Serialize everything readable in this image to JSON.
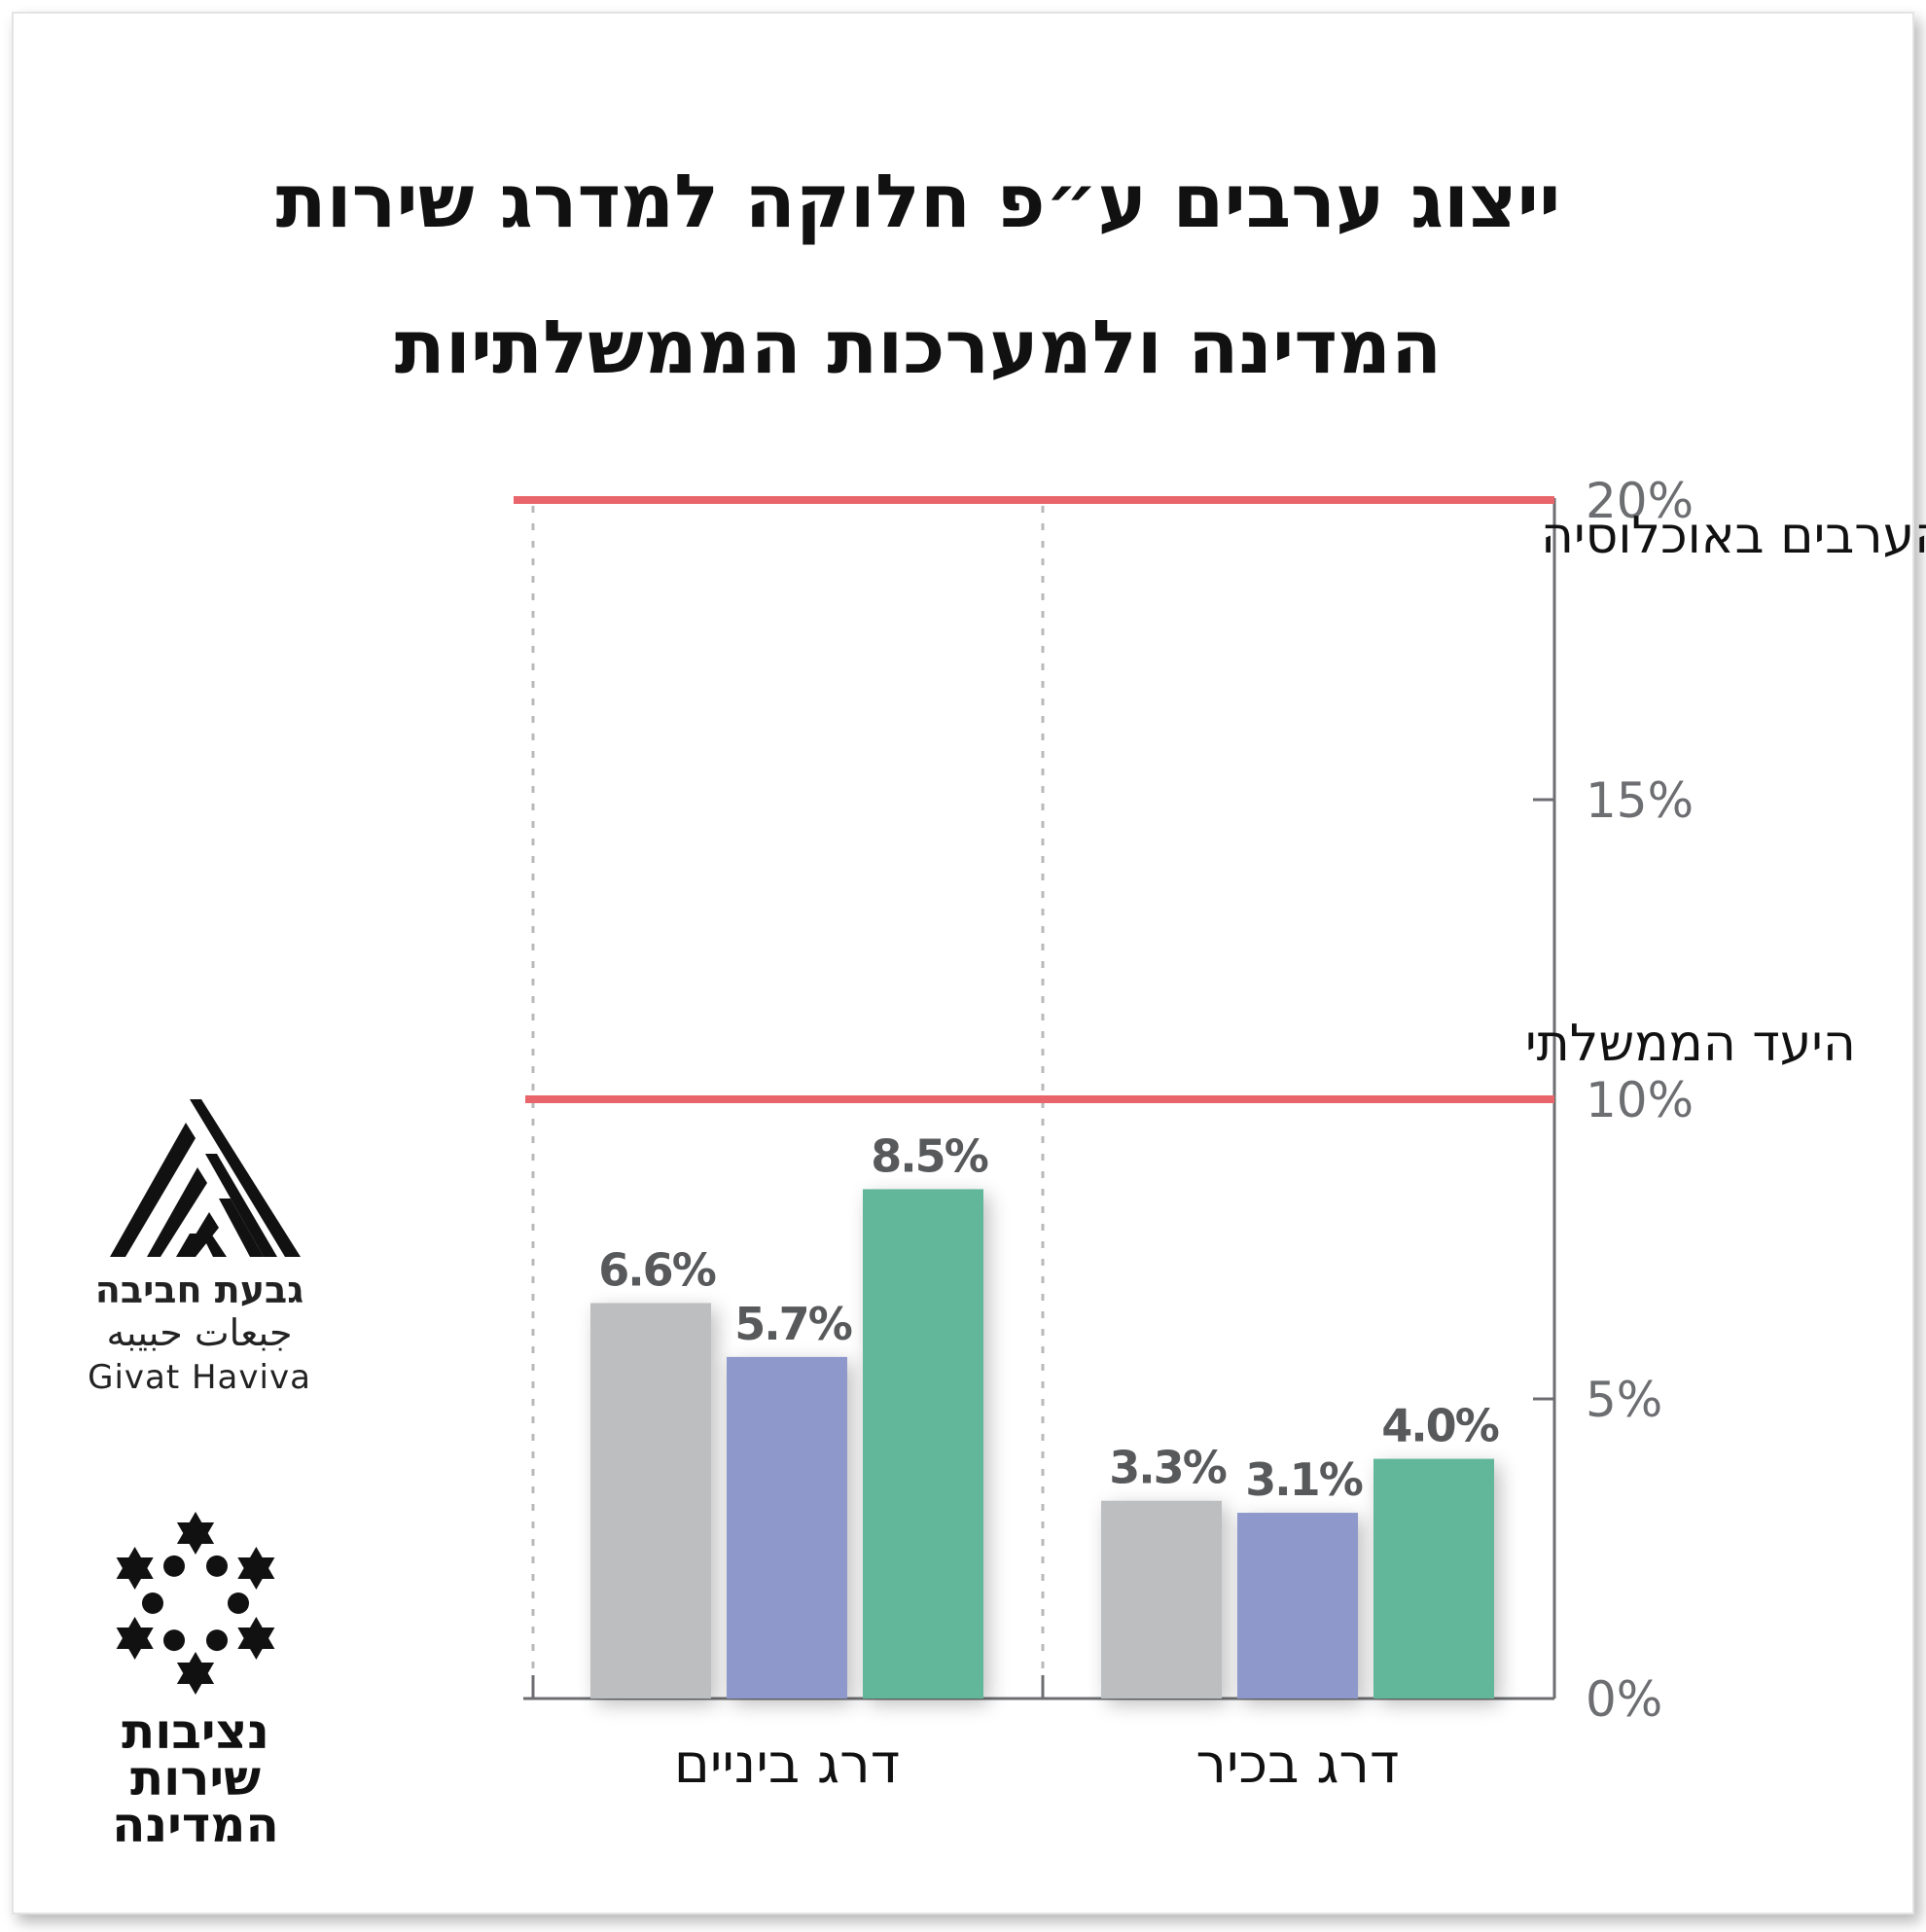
{
  "chart_data": {
    "type": "bar",
    "title_line1": "ייצוג ערבים ע״פ חלוקה למדרג שירות",
    "title_line2": "המדינה ולמערכות הממשלתיות",
    "categories": [
      "דרג ביניים",
      "דרג בכיר"
    ],
    "series": [
      {
        "name": "series-gray",
        "color": "#bdbec0",
        "values": [
          6.6,
          3.3
        ],
        "labels": [
          "6.6%",
          "3.3%"
        ]
      },
      {
        "name": "series-blue",
        "color": "#8e98cb",
        "values": [
          5.7,
          3.1
        ],
        "labels": [
          "5.7%",
          "3.1%"
        ]
      },
      {
        "name": "series-green",
        "color": "#62b79b",
        "values": [
          8.5,
          4.0
        ],
        "labels": [
          "8.5%",
          "4.0%"
        ]
      }
    ],
    "ylim": [
      0,
      20
    ],
    "yticks": [
      0,
      5,
      10,
      15,
      20
    ],
    "ytick_labels": [
      "0%",
      "5%",
      "10%",
      "15%",
      "20%"
    ],
    "reference_lines": [
      {
        "value": 20,
        "label": "אחוז הערבים באוכלוסיה",
        "color": "#e8666b"
      },
      {
        "value": 10,
        "label": "היעד הממשלתי",
        "color": "#e8666b"
      }
    ],
    "grid": false,
    "legend": "none"
  },
  "logos": {
    "givat_haviva": {
      "hebrew": "גבעת חביבה",
      "arabic": "جبعات حبيبه",
      "english": "Givat Haviva"
    },
    "nezivut": {
      "line1": "נציבות",
      "line2": "שירות",
      "line3": "המדינה"
    }
  }
}
